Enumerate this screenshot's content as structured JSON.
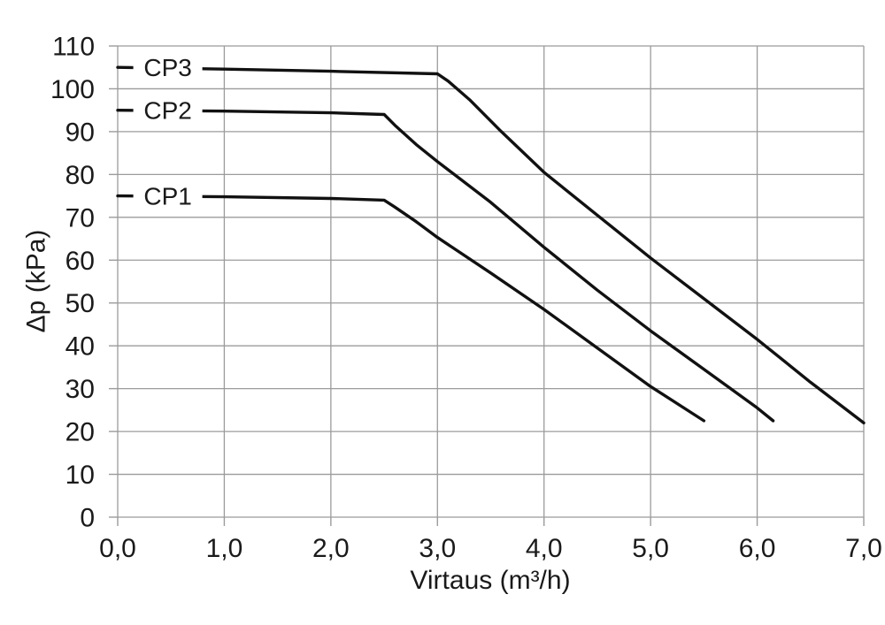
{
  "chart_data": {
    "type": "line",
    "title": "",
    "xlabel": "Virtaus (m³/h)",
    "ylabel": "Δp (kPa)",
    "xlim": [
      0,
      7
    ],
    "ylim": [
      0,
      110
    ],
    "grid": true,
    "legend_position": "on-line-labels",
    "colors": {
      "line": "#111111",
      "grid": "#9b9b9b",
      "axis": "#9b9b9b",
      "text": "#1a1a1a",
      "background": "#ffffff"
    },
    "x_ticks": [
      {
        "v": 0,
        "label": "0,0"
      },
      {
        "v": 1,
        "label": "1,0"
      },
      {
        "v": 2,
        "label": "2,0"
      },
      {
        "v": 3,
        "label": "3,0"
      },
      {
        "v": 4,
        "label": "4,0"
      },
      {
        "v": 5,
        "label": "5,0"
      },
      {
        "v": 6,
        "label": "6,0"
      },
      {
        "v": 7,
        "label": "7,0"
      }
    ],
    "y_ticks": [
      {
        "v": 0,
        "label": "0"
      },
      {
        "v": 10,
        "label": "10"
      },
      {
        "v": 20,
        "label": "20"
      },
      {
        "v": 30,
        "label": "30"
      },
      {
        "v": 40,
        "label": "40"
      },
      {
        "v": 50,
        "label": "50"
      },
      {
        "v": 60,
        "label": "60"
      },
      {
        "v": 70,
        "label": "70"
      },
      {
        "v": 80,
        "label": "80"
      },
      {
        "v": 90,
        "label": "90"
      },
      {
        "v": 100,
        "label": "100"
      },
      {
        "v": 110,
        "label": "110"
      }
    ],
    "series": [
      {
        "name": "CP3",
        "label_at": [
          0.47,
          105
        ],
        "points": [
          [
            0,
            105
          ],
          [
            1,
            104.6
          ],
          [
            2,
            104.1
          ],
          [
            3,
            103.5
          ],
          [
            3.1,
            101.8
          ],
          [
            3.3,
            97.5
          ],
          [
            3.6,
            90
          ],
          [
            4,
            80.5
          ],
          [
            4.5,
            70.5
          ],
          [
            5,
            60.5
          ],
          [
            5.5,
            51
          ],
          [
            6,
            41.5
          ],
          [
            6.5,
            31.5
          ],
          [
            7,
            22
          ]
        ]
      },
      {
        "name": "CP2",
        "label_at": [
          0.47,
          95
        ],
        "points": [
          [
            0,
            95
          ],
          [
            1,
            94.8
          ],
          [
            2,
            94.4
          ],
          [
            2.5,
            94
          ],
          [
            2.6,
            91.5
          ],
          [
            2.8,
            87
          ],
          [
            3,
            83
          ],
          [
            3.5,
            73.5
          ],
          [
            4,
            63
          ],
          [
            4.5,
            53
          ],
          [
            5,
            43.5
          ],
          [
            5.5,
            34.5
          ],
          [
            6,
            25.5
          ],
          [
            6.15,
            22.5
          ]
        ]
      },
      {
        "name": "CP1",
        "label_at": [
          0.47,
          75
        ],
        "points": [
          [
            0,
            75
          ],
          [
            1,
            74.8
          ],
          [
            2,
            74.4
          ],
          [
            2.5,
            74
          ],
          [
            2.6,
            72.4
          ],
          [
            2.8,
            69
          ],
          [
            3,
            65.3
          ],
          [
            3.5,
            57
          ],
          [
            4,
            48.5
          ],
          [
            4.5,
            39.5
          ],
          [
            5,
            30.5
          ],
          [
            5.5,
            22.5
          ]
        ]
      }
    ]
  }
}
